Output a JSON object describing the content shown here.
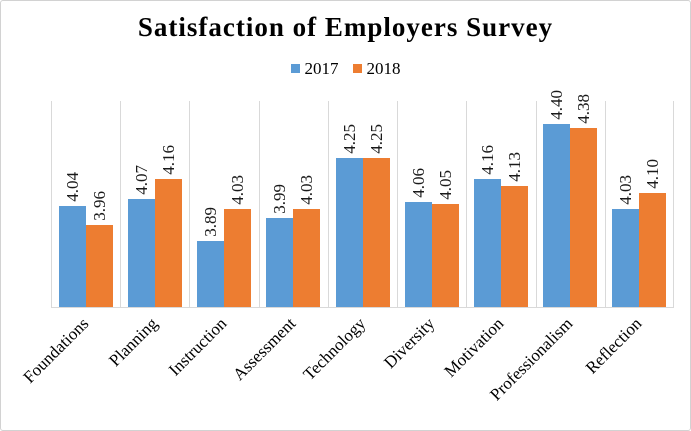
{
  "figure": {
    "title": "Satisfaction of Employers Survey"
  },
  "legend": {
    "position": "top-center",
    "items": [
      {
        "label": "2017",
        "color": "#5B9BD5"
      },
      {
        "label": "2018",
        "color": "#ED7D31"
      }
    ]
  },
  "chart_data": {
    "type": "bar",
    "title": "Satisfaction of Employers Survey",
    "categories": [
      "Foundations",
      "Planning",
      "Instruction",
      "Assessment",
      "Technology",
      "Diversity",
      "Motivation",
      "Professionalism",
      "Reflection"
    ],
    "series": [
      {
        "name": "2017",
        "color": "#5B9BD5",
        "values": [
          4.04,
          4.07,
          3.89,
          3.99,
          4.25,
          4.06,
          4.16,
          4.4,
          4.03
        ]
      },
      {
        "name": "2018",
        "color": "#ED7D31",
        "values": [
          3.96,
          4.16,
          4.03,
          4.03,
          4.25,
          4.05,
          4.13,
          4.38,
          4.1
        ]
      }
    ],
    "xlabel": "",
    "ylabel": "",
    "ylim": [
      3.6,
      4.5
    ],
    "grid": "vertical category separators only, no horizontal gridlines, no y-axis ticks",
    "legend_position": "top",
    "data_labels": "above each bar, rotated 90 degrees, two decimals",
    "category_label_rotation": -45,
    "value_label_format": "0.00"
  },
  "styles": {
    "grid_color": "#d9d9d9",
    "axis_color": "#d9d9d9",
    "border_color": "#d2d2d2",
    "text_color": "#000000",
    "background": "#ffffff"
  }
}
